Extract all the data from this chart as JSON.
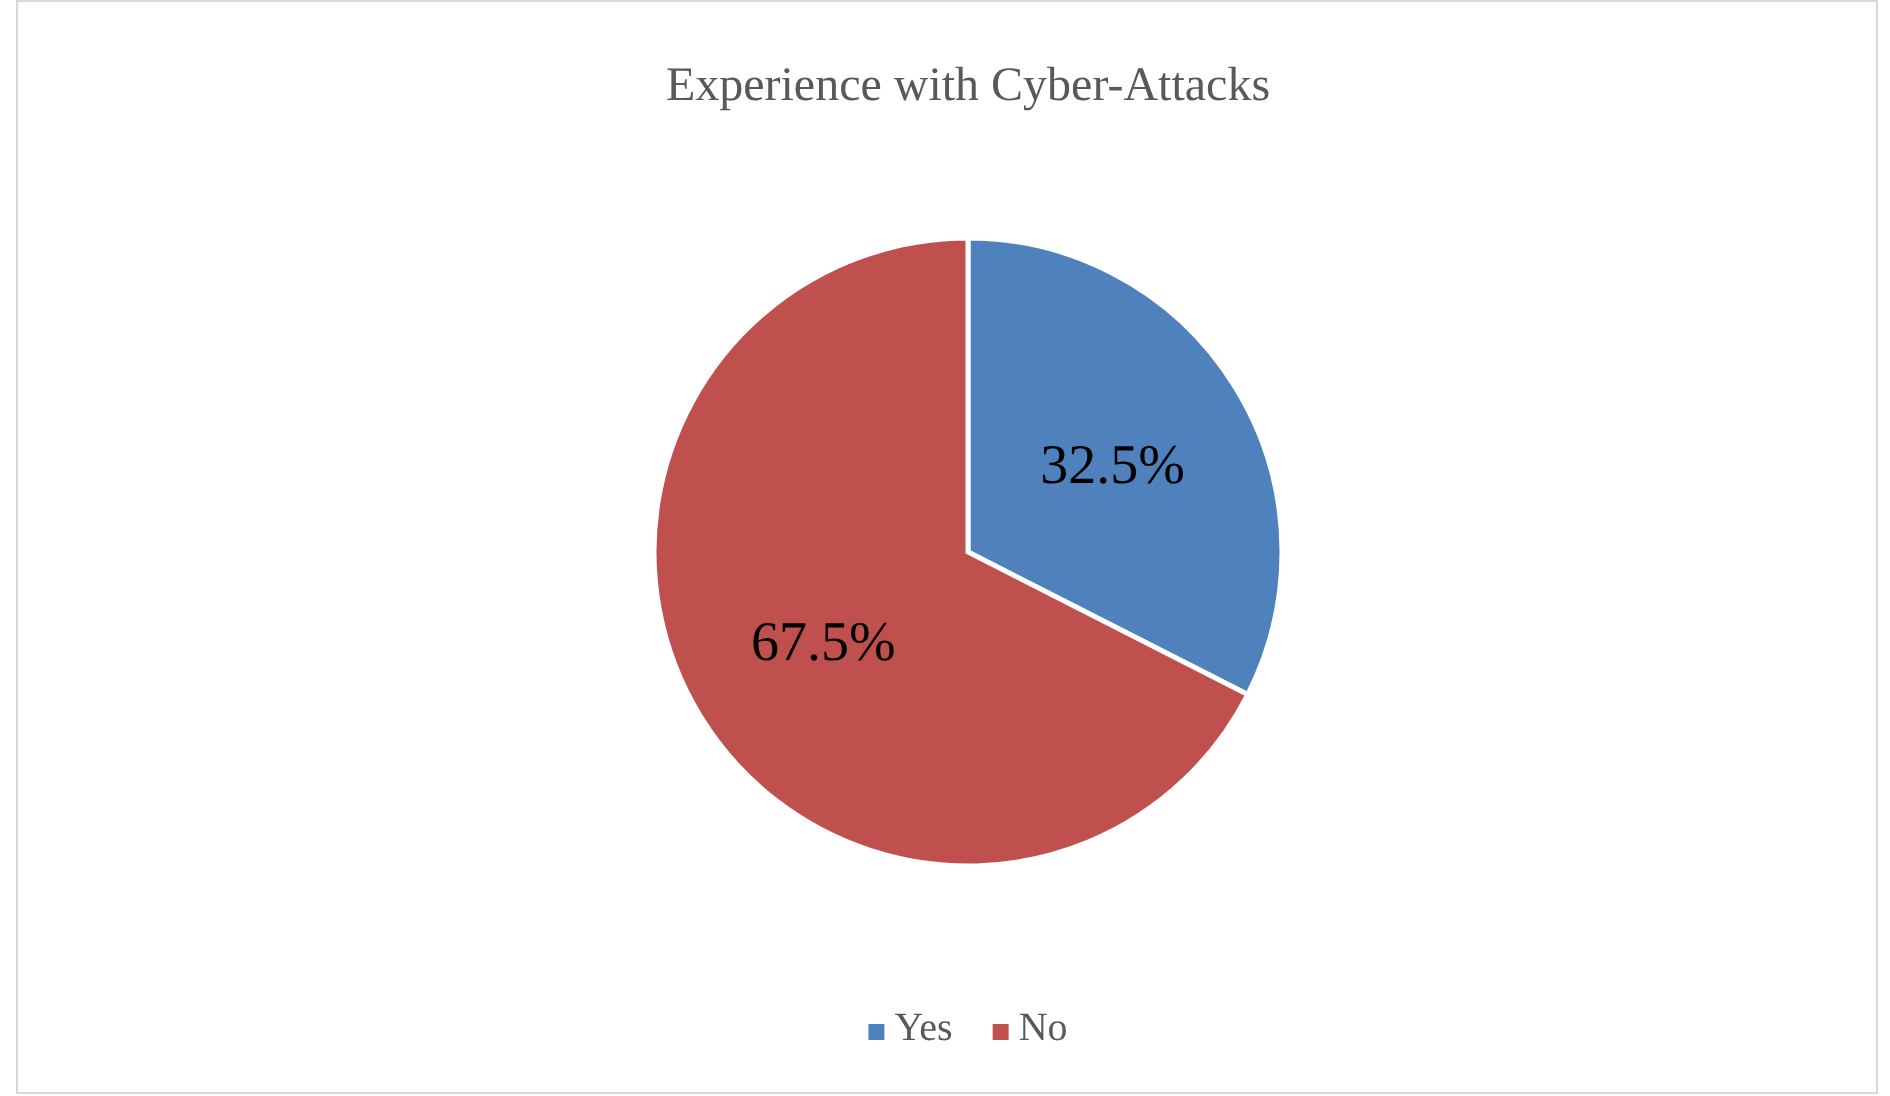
{
  "chart_data": {
    "type": "pie",
    "title": "Experience with Cyber-Attacks",
    "categories": [
      "Yes",
      "No"
    ],
    "values": [
      32.5,
      67.5
    ],
    "colors": [
      "#4f81bd",
      "#c0504d"
    ],
    "value_labels": [
      "32.5%",
      "67.5%"
    ],
    "legend": "bottom"
  }
}
